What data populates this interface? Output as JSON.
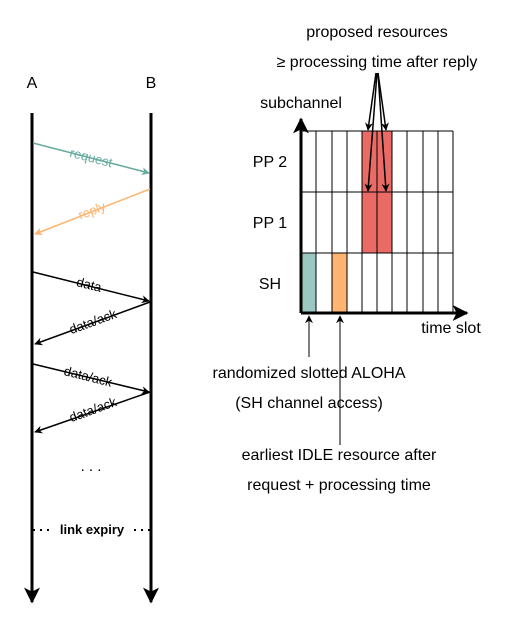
{
  "sequence": {
    "node_a": "A",
    "node_b": "B",
    "messages": [
      {
        "label": "request",
        "color": "#67AB9F"
      },
      {
        "label": "reply",
        "color": "#FFB570"
      },
      {
        "label": "data",
        "color": "#000000"
      },
      {
        "label": "data/ack",
        "color": "#000000"
      },
      {
        "label": "data/ack",
        "color": "#000000"
      },
      {
        "label": "data/ack",
        "color": "#000000"
      }
    ],
    "ellipsis": ". . .",
    "expiry_label": "link expiry"
  },
  "grid": {
    "y_axis_label": "subchannel",
    "x_axis_label": "time slot",
    "row_labels": [
      "PP 2",
      "PP 1",
      "SH"
    ],
    "fills": {
      "sh_aloha": "#9AC7BF",
      "sh_earliest": "#FFB570",
      "pp_proposed": "#EA6B66"
    }
  },
  "annotations": {
    "proposed_line1": "proposed resources",
    "proposed_line2": "≥ processing time after reply",
    "aloha_line1": "randomized slotted ALOHA",
    "aloha_line2": "(SH channel access)",
    "idle_line1": "earliest IDLE resource after",
    "idle_line2": "request + processing time"
  }
}
